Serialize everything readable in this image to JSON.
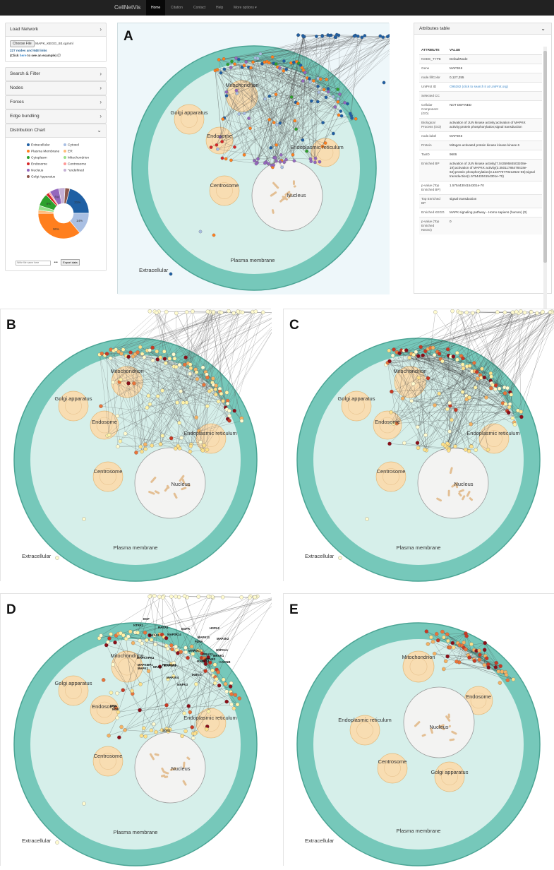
{
  "navbar": {
    "brand": "CellNetVis",
    "items": [
      "Home",
      "Citation",
      "Contact",
      "Help",
      "More options ▾"
    ]
  },
  "sidebar": {
    "load_network": "Load Network",
    "choose_file": "Choose File",
    "file_name": "MAPK_KEGG_93.xgmml",
    "stats": "227 nodes and 948 links",
    "example_prefix": "(Click ",
    "example_link": "here",
    "example_suffix": " to see an example)",
    "sections": [
      "Search & Filter",
      "Nodes",
      "Forces",
      "Edge bundling"
    ],
    "distribution_chart": "Distribution Chart",
    "export_placeholder": "Write file name here",
    "export_button": "Export data"
  },
  "chart_data": {
    "type": "pie",
    "legend": [
      {
        "label": "Extracellular",
        "color": "#1f5fa3"
      },
      {
        "label": "Cytosol",
        "color": "#a9bfe3"
      },
      {
        "label": "Plasma Membrane",
        "color": "#ff7f1e"
      },
      {
        "label": "ER",
        "color": "#ffbb78"
      },
      {
        "label": "Cytoplasm",
        "color": "#2ca02c"
      },
      {
        "label": "Mitochondrion",
        "color": "#98df8a"
      },
      {
        "label": "Endosome",
        "color": "#d62728"
      },
      {
        "label": "Centrosome",
        "color": "#ff9896"
      },
      {
        "label": "Nucleus",
        "color": "#9467bd"
      },
      {
        "label": "*undefined",
        "color": "#c5b0d5"
      },
      {
        "label": "Golgi Apparatus",
        "color": "#8c564b"
      }
    ],
    "slices": [
      {
        "label": "Extracellular",
        "value": 21,
        "color": "#1f5fa3",
        "text": "21%"
      },
      {
        "label": "Cytosol",
        "value": 14,
        "color": "#a9bfe3",
        "text": "14%"
      },
      {
        "label": "Plasma Membrane",
        "value": 36,
        "color": "#ff7f1e",
        "text": "36%"
      },
      {
        "label": "ER",
        "value": 2,
        "color": "#ffbb78",
        "text": ""
      },
      {
        "label": "Mitochondrion",
        "value": 3,
        "color": "#98df8a",
        "text": ""
      },
      {
        "label": "Cytoplasm",
        "value": 8,
        "color": "#2ca02c",
        "text": "8%"
      },
      {
        "label": "Endosome",
        "value": 2,
        "color": "#d62728",
        "text": ""
      },
      {
        "label": "Centrosome",
        "value": 1,
        "color": "#ff9896",
        "text": ""
      },
      {
        "label": "Nucleus",
        "value": 6,
        "color": "#9467bd",
        "text": "6%"
      },
      {
        "label": "*undefined",
        "value": 4,
        "color": "#c5b0d5",
        "text": ""
      },
      {
        "label": "Golgi Apparatus",
        "value": 3,
        "color": "#8c564b",
        "text": ""
      }
    ]
  },
  "attributes": {
    "title": "Attributes table",
    "col_attr": "ATTRIBUTE",
    "col_value": "VALUE",
    "rows": [
      [
        "NODE_TYPE",
        "DefaultNode"
      ],
      [
        "Gene",
        "MAP3K6"
      ],
      [
        "node.fillColor",
        "0,127,255"
      ],
      [
        "UniProt ID",
        "O95382 (click to search it at UniProt.org)"
      ],
      [
        "Selected CC",
        ""
      ],
      [
        "Cellular Component (GO)",
        "NOT DEFINED"
      ],
      [
        "Biological Process (GO)",
        "activation of JUN kinase activity;activation of MAPKK activity;protein phosphorylation;signal transduction"
      ],
      [
        "node.label",
        "MAP3K6"
      ],
      [
        "Protein",
        "Mitogen-activated protein kinase kinase kinase 6"
      ],
      [
        "TaxID",
        "9606"
      ],
      [
        "Enriched BP",
        "activation of JUN kinase activity(7.04359584503208e-19);activation of MAPKK activity(3.35011786478418e-63);protein phosphorylation(3.14377077021262e-65);signal transduction(1.57544304154301e-70)"
      ],
      [
        "p-value (Top Enriched BP)",
        "1.57544304154301e-70"
      ],
      [
        "Top Enriched BP",
        "signal transduction"
      ],
      [
        "Enriched KEGG",
        "MAPK signaling pathway - Homo sapiens (human) (0)"
      ],
      [
        "p-value (Top Enriched KEGG)",
        "0"
      ]
    ]
  },
  "figures": {
    "A": {
      "label": "A",
      "extracellular": "Extracellular",
      "plasma": "Plasma membrane",
      "mito": "Mitochondrion",
      "golgi": "Golgi apparatus",
      "endo": "Endosome",
      "er": "Endoplasmic reticulum",
      "centro": "Centrosome",
      "nucleus": "Nucleus"
    },
    "B": {
      "label": "B",
      "extracellular": "Extracellular",
      "plasma": "Plasma membrane",
      "mito": "Mitochondrion",
      "golgi": "Golgi apparatus",
      "endo": "Endosome",
      "er": "Endoplasmic reticulum",
      "centro": "Centrosome",
      "nucleus": "Nucleus"
    },
    "C": {
      "label": "C",
      "extracellular": "Extracellular",
      "plasma": "Plasma membrane",
      "mito": "Mitochondrion",
      "golgi": "Golgi apparatus",
      "endo": "Endosome",
      "er": "Endoplasmic reticulum",
      "centro": "Centrosome",
      "nucleus": "Nucleus"
    },
    "D": {
      "label": "D",
      "extracellular": "Extracellular",
      "plasma": "Plasma membrane",
      "mito": "Mitochondrion",
      "golgi": "Golgi apparatus",
      "endo": "Endosome",
      "er": "Endoplasmic reticulum",
      "centro": "Centrosome",
      "nucleus": "Nucleus",
      "genes": [
        "EGF",
        "NTRK1",
        "RASA1",
        "EGFR",
        "HSPA2",
        "MAP3K14",
        "MAPK11",
        "MAP2K2",
        "HSPA1A",
        "MAPKAPK3",
        "RRAS2",
        "MAPK14",
        "MAP2K1",
        "MAPK1",
        "IKBKG",
        "MAP2K4",
        "MAPK3",
        "SOS2",
        "CRK",
        "NGF",
        "RASA2",
        "FLNA",
        "MAP3K1",
        "CACNB",
        "MAPK8IP1",
        "MKNK1",
        "RPS6KA3",
        "MKNK2",
        "NRAS"
      ]
    },
    "E": {
      "label": "E",
      "extracellular": "Extracellular",
      "plasma": "Plasma membrane",
      "mito": "Mitochondrion",
      "golgi": "Golgi apparatus",
      "endo": "Endosome",
      "er": "Endoplasmic reticulum",
      "centro": "Centrosome",
      "nucleus": "Nucleus"
    }
  }
}
